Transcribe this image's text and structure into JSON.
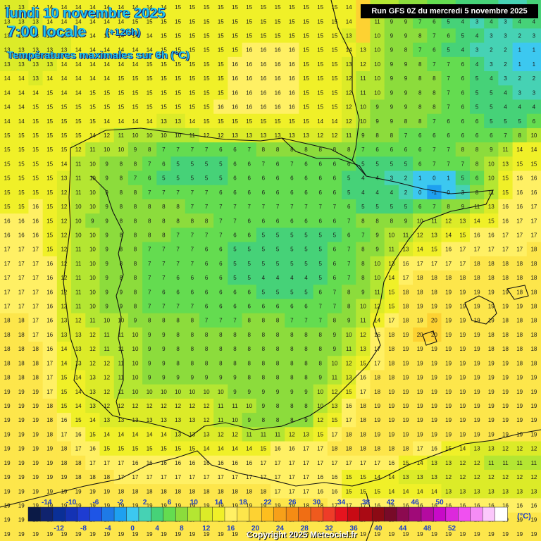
{
  "header": {
    "date": "lundi 10 novembre 2025",
    "local_time": "7:00 locale",
    "lead_time": "(+126h)",
    "parameter": "Températures maximales sur 6h (°C)"
  },
  "run_info": "Run GFS 0Z du mercredi 5 novembre 2025",
  "copyright": "Copyright 2025 Meteociel.fr",
  "legend": {
    "unit": "(°C)",
    "top_labels": [
      "-14",
      "-10",
      "-6",
      "-2",
      "2",
      "6",
      "10",
      "14",
      "18",
      "22",
      "26",
      "30",
      "34",
      "38",
      "42",
      "46",
      "50"
    ],
    "bottom_labels": [
      "-12",
      "-8",
      "-4",
      "0",
      "4",
      "8",
      "12",
      "16",
      "20",
      "24",
      "28",
      "32",
      "36",
      "40",
      "44",
      "48",
      "52"
    ],
    "colors": [
      "#0b1a46",
      "#10236e",
      "#0a2f96",
      "#1432b4",
      "#1e3cd2",
      "#1e55e6",
      "#1e7ae6",
      "#1ea0f0",
      "#3cc8f0",
      "#46d2b4",
      "#46d278",
      "#64dc50",
      "#8cdc3c",
      "#b4e632",
      "#dceb28",
      "#f0f028",
      "#fff064",
      "#fde64b",
      "#fdd232",
      "#fdbe1e",
      "#f7a019",
      "#f58c14",
      "#f06e14",
      "#ef5a1e",
      "#ee3c28",
      "#e6141e",
      "#c80a14",
      "#aa0a14",
      "#8c0a14",
      "#780a28",
      "#8c0a50",
      "#a00a78",
      "#b40aa0",
      "#c80ac8",
      "#dc28dc",
      "#f050f0",
      "#f58cf5",
      "#fbc8fb",
      "#ffffff"
    ]
  },
  "temperature_grid": [
    [
      13,
      13,
      14,
      14,
      14,
      14,
      14,
      14,
      14,
      14,
      14,
      14,
      15,
      15,
      15,
      15,
      15,
      15,
      15,
      15,
      15,
      15,
      15,
      15,
      14,
      null,
      11,
      11,
      9,
      8,
      7,
      6,
      5,
      4,
      4,
      3,
      3,
      4
    ],
    [
      13,
      13,
      13,
      14,
      14,
      14,
      14,
      14,
      14,
      15,
      15,
      15,
      15,
      15,
      15,
      15,
      15,
      15,
      15,
      15,
      15,
      15,
      15,
      15,
      14,
      null,
      11,
      9,
      9,
      7,
      6,
      5,
      4,
      3,
      4,
      3,
      4,
      4
    ],
    [
      13,
      13,
      13,
      13,
      13,
      14,
      14,
      14,
      14,
      14,
      14,
      15,
      15,
      15,
      15,
      15,
      15,
      15,
      15,
      15,
      15,
      15,
      15,
      15,
      13,
      null,
      10,
      9,
      9,
      8,
      7,
      6,
      5,
      4,
      3,
      3,
      2,
      3
    ],
    [
      13,
      13,
      13,
      13,
      13,
      14,
      14,
      14,
      14,
      14,
      14,
      15,
      15,
      15,
      15,
      15,
      15,
      16,
      16,
      16,
      16,
      15,
      15,
      15,
      14,
      13,
      10,
      9,
      8,
      7,
      6,
      5,
      4,
      3,
      2,
      2,
      1,
      1
    ],
    [
      13,
      13,
      13,
      13,
      14,
      14,
      14,
      14,
      14,
      14,
      15,
      15,
      15,
      15,
      15,
      15,
      16,
      16,
      16,
      16,
      16,
      15,
      15,
      15,
      13,
      12,
      10,
      9,
      9,
      8,
      7,
      7,
      6,
      4,
      3,
      2,
      1,
      1
    ],
    [
      14,
      14,
      13,
      14,
      14,
      14,
      14,
      14,
      15,
      15,
      15,
      15,
      15,
      15,
      15,
      15,
      16,
      16,
      16,
      16,
      16,
      15,
      15,
      15,
      12,
      11,
      10,
      9,
      9,
      8,
      8,
      7,
      6,
      5,
      4,
      3,
      2,
      2
    ],
    [
      14,
      14,
      14,
      15,
      14,
      14,
      15,
      15,
      15,
      15,
      15,
      15,
      15,
      15,
      15,
      15,
      16,
      16,
      16,
      16,
      16,
      15,
      15,
      15,
      12,
      11,
      10,
      9,
      9,
      8,
      8,
      7,
      6,
      5,
      5,
      4,
      3,
      3
    ],
    [
      14,
      14,
      15,
      15,
      15,
      15,
      15,
      15,
      15,
      15,
      15,
      15,
      15,
      15,
      15,
      16,
      16,
      16,
      16,
      16,
      16,
      15,
      15,
      15,
      12,
      10,
      9,
      9,
      9,
      8,
      8,
      7,
      6,
      5,
      5,
      4,
      4,
      4
    ],
    [
      14,
      14,
      15,
      15,
      15,
      15,
      15,
      14,
      14,
      14,
      14,
      13,
      13,
      14,
      15,
      15,
      15,
      15,
      15,
      15,
      15,
      15,
      14,
      14,
      12,
      10,
      9,
      9,
      8,
      8,
      7,
      6,
      6,
      6,
      5,
      5,
      5,
      6
    ],
    [
      15,
      15,
      15,
      15,
      15,
      15,
      14,
      12,
      11,
      10,
      10,
      10,
      10,
      11,
      12,
      12,
      13,
      13,
      13,
      13,
      13,
      13,
      12,
      12,
      11,
      9,
      8,
      8,
      7,
      6,
      6,
      6,
      6,
      6,
      6,
      7,
      8,
      10
    ],
    [
      15,
      15,
      15,
      15,
      15,
      12,
      11,
      10,
      10,
      9,
      8,
      7,
      7,
      7,
      7,
      6,
      6,
      7,
      8,
      8,
      8,
      8,
      8,
      8,
      8,
      7,
      6,
      6,
      6,
      6,
      7,
      7,
      8,
      8,
      9,
      11,
      14,
      14
    ],
    [
      15,
      15,
      15,
      15,
      14,
      11,
      10,
      9,
      8,
      8,
      7,
      6,
      5,
      5,
      5,
      5,
      6,
      6,
      7,
      6,
      7,
      6,
      6,
      6,
      6,
      5,
      5,
      5,
      5,
      6,
      7,
      7,
      7,
      8,
      10,
      13,
      15,
      15
    ],
    [
      15,
      15,
      15,
      15,
      13,
      11,
      10,
      9,
      8,
      7,
      6,
      5,
      5,
      5,
      5,
      5,
      6,
      6,
      6,
      6,
      6,
      6,
      6,
      6,
      5,
      4,
      4,
      3,
      2,
      1,
      0,
      1,
      5,
      6,
      10,
      15,
      16,
      16
    ],
    [
      15,
      15,
      15,
      15,
      12,
      11,
      10,
      9,
      8,
      8,
      7,
      7,
      7,
      7,
      7,
      6,
      6,
      6,
      6,
      6,
      6,
      6,
      6,
      6,
      5,
      4,
      4,
      4,
      2,
      0,
      -1,
      0,
      3,
      8,
      11,
      15,
      16,
      16
    ],
    [
      15,
      15,
      16,
      15,
      12,
      10,
      10,
      9,
      8,
      8,
      8,
      8,
      8,
      7,
      7,
      7,
      7,
      7,
      7,
      7,
      7,
      7,
      7,
      7,
      6,
      5,
      5,
      5,
      5,
      6,
      7,
      8,
      9,
      11,
      13,
      16,
      16,
      17
    ],
    [
      16,
      16,
      16,
      15,
      12,
      10,
      9,
      9,
      8,
      8,
      8,
      8,
      8,
      8,
      8,
      7,
      7,
      6,
      6,
      6,
      6,
      6,
      6,
      6,
      7,
      8,
      8,
      8,
      9,
      10,
      11,
      12,
      13,
      14,
      15,
      16,
      17,
      17
    ],
    [
      16,
      16,
      16,
      15,
      12,
      10,
      10,
      9,
      8,
      8,
      8,
      8,
      7,
      7,
      7,
      7,
      6,
      6,
      5,
      5,
      5,
      5,
      5,
      5,
      6,
      7,
      9,
      10,
      11,
      12,
      13,
      14,
      15,
      16,
      16,
      17,
      17,
      17
    ],
    [
      17,
      17,
      17,
      15,
      12,
      11,
      10,
      9,
      8,
      8,
      7,
      7,
      7,
      7,
      6,
      6,
      5,
      5,
      5,
      5,
      5,
      5,
      5,
      6,
      7,
      8,
      9,
      11,
      13,
      14,
      15,
      16,
      17,
      17,
      17,
      17,
      17,
      18
    ],
    [
      17,
      17,
      17,
      16,
      12,
      11,
      10,
      9,
      8,
      8,
      7,
      7,
      7,
      7,
      6,
      6,
      5,
      5,
      5,
      5,
      5,
      5,
      5,
      6,
      7,
      8,
      10,
      13,
      16,
      17,
      17,
      17,
      17,
      18,
      18,
      18,
      18,
      18
    ],
    [
      17,
      17,
      17,
      16,
      12,
      11,
      10,
      9,
      8,
      8,
      7,
      7,
      6,
      6,
      6,
      6,
      5,
      5,
      4,
      4,
      4,
      4,
      5,
      6,
      7,
      8,
      10,
      14,
      17,
      18,
      18,
      18,
      18,
      18,
      18,
      18,
      18,
      18
    ],
    [
      17,
      17,
      17,
      16,
      12,
      11,
      10,
      9,
      9,
      8,
      7,
      6,
      6,
      6,
      6,
      6,
      6,
      6,
      5,
      5,
      5,
      5,
      6,
      7,
      8,
      9,
      11,
      15,
      18,
      18,
      18,
      19,
      19,
      19,
      19,
      19,
      18,
      18
    ],
    [
      17,
      17,
      17,
      16,
      12,
      11,
      10,
      9,
      9,
      8,
      7,
      7,
      7,
      7,
      6,
      6,
      6,
      6,
      6,
      6,
      6,
      6,
      7,
      7,
      8,
      10,
      12,
      15,
      18,
      19,
      19,
      19,
      19,
      19,
      19,
      19,
      19,
      18
    ],
    [
      18,
      18,
      17,
      16,
      13,
      12,
      11,
      10,
      10,
      9,
      8,
      8,
      8,
      8,
      7,
      7,
      7,
      8,
      8,
      8,
      7,
      7,
      7,
      8,
      9,
      11,
      14,
      17,
      18,
      19,
      20,
      19,
      19,
      19,
      19,
      18,
      18,
      18
    ],
    [
      18,
      18,
      17,
      16,
      13,
      13,
      12,
      11,
      11,
      10,
      9,
      9,
      8,
      8,
      8,
      8,
      8,
      8,
      8,
      8,
      8,
      8,
      8,
      9,
      10,
      12,
      16,
      18,
      19,
      20,
      20,
      19,
      19,
      19,
      18,
      18,
      18,
      18
    ],
    [
      18,
      18,
      18,
      16,
      14,
      13,
      12,
      11,
      11,
      10,
      9,
      9,
      8,
      8,
      8,
      8,
      8,
      8,
      8,
      8,
      8,
      8,
      8,
      9,
      11,
      13,
      17,
      18,
      19,
      19,
      19,
      19,
      19,
      19,
      18,
      18,
      18,
      18
    ],
    [
      18,
      18,
      18,
      17,
      14,
      13,
      12,
      12,
      11,
      10,
      9,
      9,
      8,
      8,
      8,
      8,
      8,
      8,
      8,
      8,
      8,
      8,
      8,
      10,
      12,
      15,
      17,
      18,
      19,
      19,
      19,
      19,
      19,
      19,
      19,
      19,
      18,
      18
    ],
    [
      18,
      18,
      18,
      17,
      15,
      14,
      13,
      12,
      11,
      10,
      9,
      9,
      9,
      9,
      9,
      9,
      9,
      8,
      8,
      8,
      8,
      8,
      9,
      11,
      13,
      16,
      18,
      18,
      19,
      19,
      19,
      19,
      19,
      19,
      19,
      19,
      19,
      19
    ],
    [
      19,
      19,
      19,
      17,
      15,
      14,
      13,
      12,
      11,
      10,
      10,
      10,
      10,
      10,
      10,
      10,
      9,
      9,
      9,
      9,
      9,
      9,
      10,
      12,
      15,
      17,
      18,
      19,
      19,
      19,
      19,
      19,
      19,
      19,
      19,
      19,
      19,
      19
    ],
    [
      19,
      19,
      19,
      18,
      15,
      14,
      13,
      12,
      12,
      12,
      12,
      12,
      12,
      12,
      12,
      11,
      11,
      10,
      9,
      8,
      8,
      8,
      10,
      13,
      16,
      18,
      19,
      19,
      19,
      19,
      19,
      19,
      19,
      19,
      19,
      19,
      19,
      19
    ],
    [
      19,
      19,
      19,
      18,
      16,
      15,
      14,
      13,
      13,
      13,
      13,
      13,
      13,
      13,
      12,
      11,
      10,
      9,
      8,
      8,
      8,
      9,
      12,
      15,
      17,
      18,
      19,
      19,
      19,
      19,
      19,
      19,
      19,
      19,
      19,
      19,
      19,
      19
    ],
    [
      19,
      19,
      19,
      18,
      17,
      16,
      15,
      14,
      14,
      14,
      14,
      14,
      13,
      13,
      13,
      12,
      12,
      11,
      11,
      11,
      12,
      13,
      15,
      17,
      18,
      18,
      19,
      19,
      19,
      19,
      19,
      19,
      19,
      19,
      19,
      19,
      19,
      19
    ],
    [
      19,
      19,
      19,
      19,
      18,
      17,
      16,
      15,
      15,
      15,
      15,
      15,
      15,
      15,
      14,
      14,
      14,
      14,
      15,
      16,
      16,
      17,
      17,
      18,
      18,
      18,
      18,
      18,
      18,
      17,
      16,
      15,
      14,
      13,
      13,
      12,
      12,
      12
    ],
    [
      19,
      19,
      19,
      19,
      18,
      18,
      17,
      17,
      17,
      16,
      16,
      16,
      16,
      16,
      16,
      16,
      16,
      16,
      17,
      17,
      17,
      17,
      17,
      17,
      17,
      17,
      17,
      16,
      15,
      14,
      13,
      13,
      12,
      12,
      11,
      11,
      11,
      11
    ],
    [
      19,
      19,
      19,
      19,
      19,
      18,
      18,
      18,
      17,
      17,
      17,
      17,
      17,
      17,
      17,
      17,
      17,
      17,
      17,
      17,
      17,
      17,
      16,
      16,
      15,
      15,
      14,
      14,
      13,
      13,
      13,
      12,
      12,
      12,
      12,
      12,
      12,
      12
    ],
    [
      19,
      19,
      19,
      19,
      19,
      19,
      19,
      19,
      18,
      18,
      18,
      18,
      18,
      18,
      18,
      18,
      18,
      18,
      18,
      17,
      17,
      17,
      16,
      16,
      15,
      15,
      15,
      14,
      14,
      14,
      14,
      13,
      13,
      13,
      13,
      13,
      13,
      13
    ],
    [
      19,
      19,
      19,
      19,
      19,
      19,
      19,
      19,
      19,
      19,
      19,
      19,
      19,
      19,
      19,
      19,
      19,
      19,
      19,
      19,
      19,
      18,
      18,
      17,
      17,
      17,
      16,
      16,
      16,
      16,
      16,
      16,
      16,
      16,
      16,
      16,
      16,
      16
    ],
    [
      19,
      19,
      19,
      19,
      19,
      19,
      19,
      19,
      19,
      19,
      19,
      19,
      19,
      19,
      19,
      19,
      19,
      19,
      19,
      19,
      19,
      19,
      19,
      19,
      19,
      19,
      19,
      19,
      19,
      19,
      19,
      19,
      19,
      19,
      19,
      19,
      19,
      19
    ],
    [
      19,
      19,
      19,
      19,
      19,
      19,
      19,
      19,
      19,
      19,
      19,
      19,
      19,
      19,
      19,
      19,
      19,
      19,
      19,
      19,
      19,
      19,
      19,
      19,
      19,
      19,
      19,
      19,
      19,
      19,
      19,
      19,
      19,
      19,
      19,
      19,
      19,
      19
    ]
  ]
}
